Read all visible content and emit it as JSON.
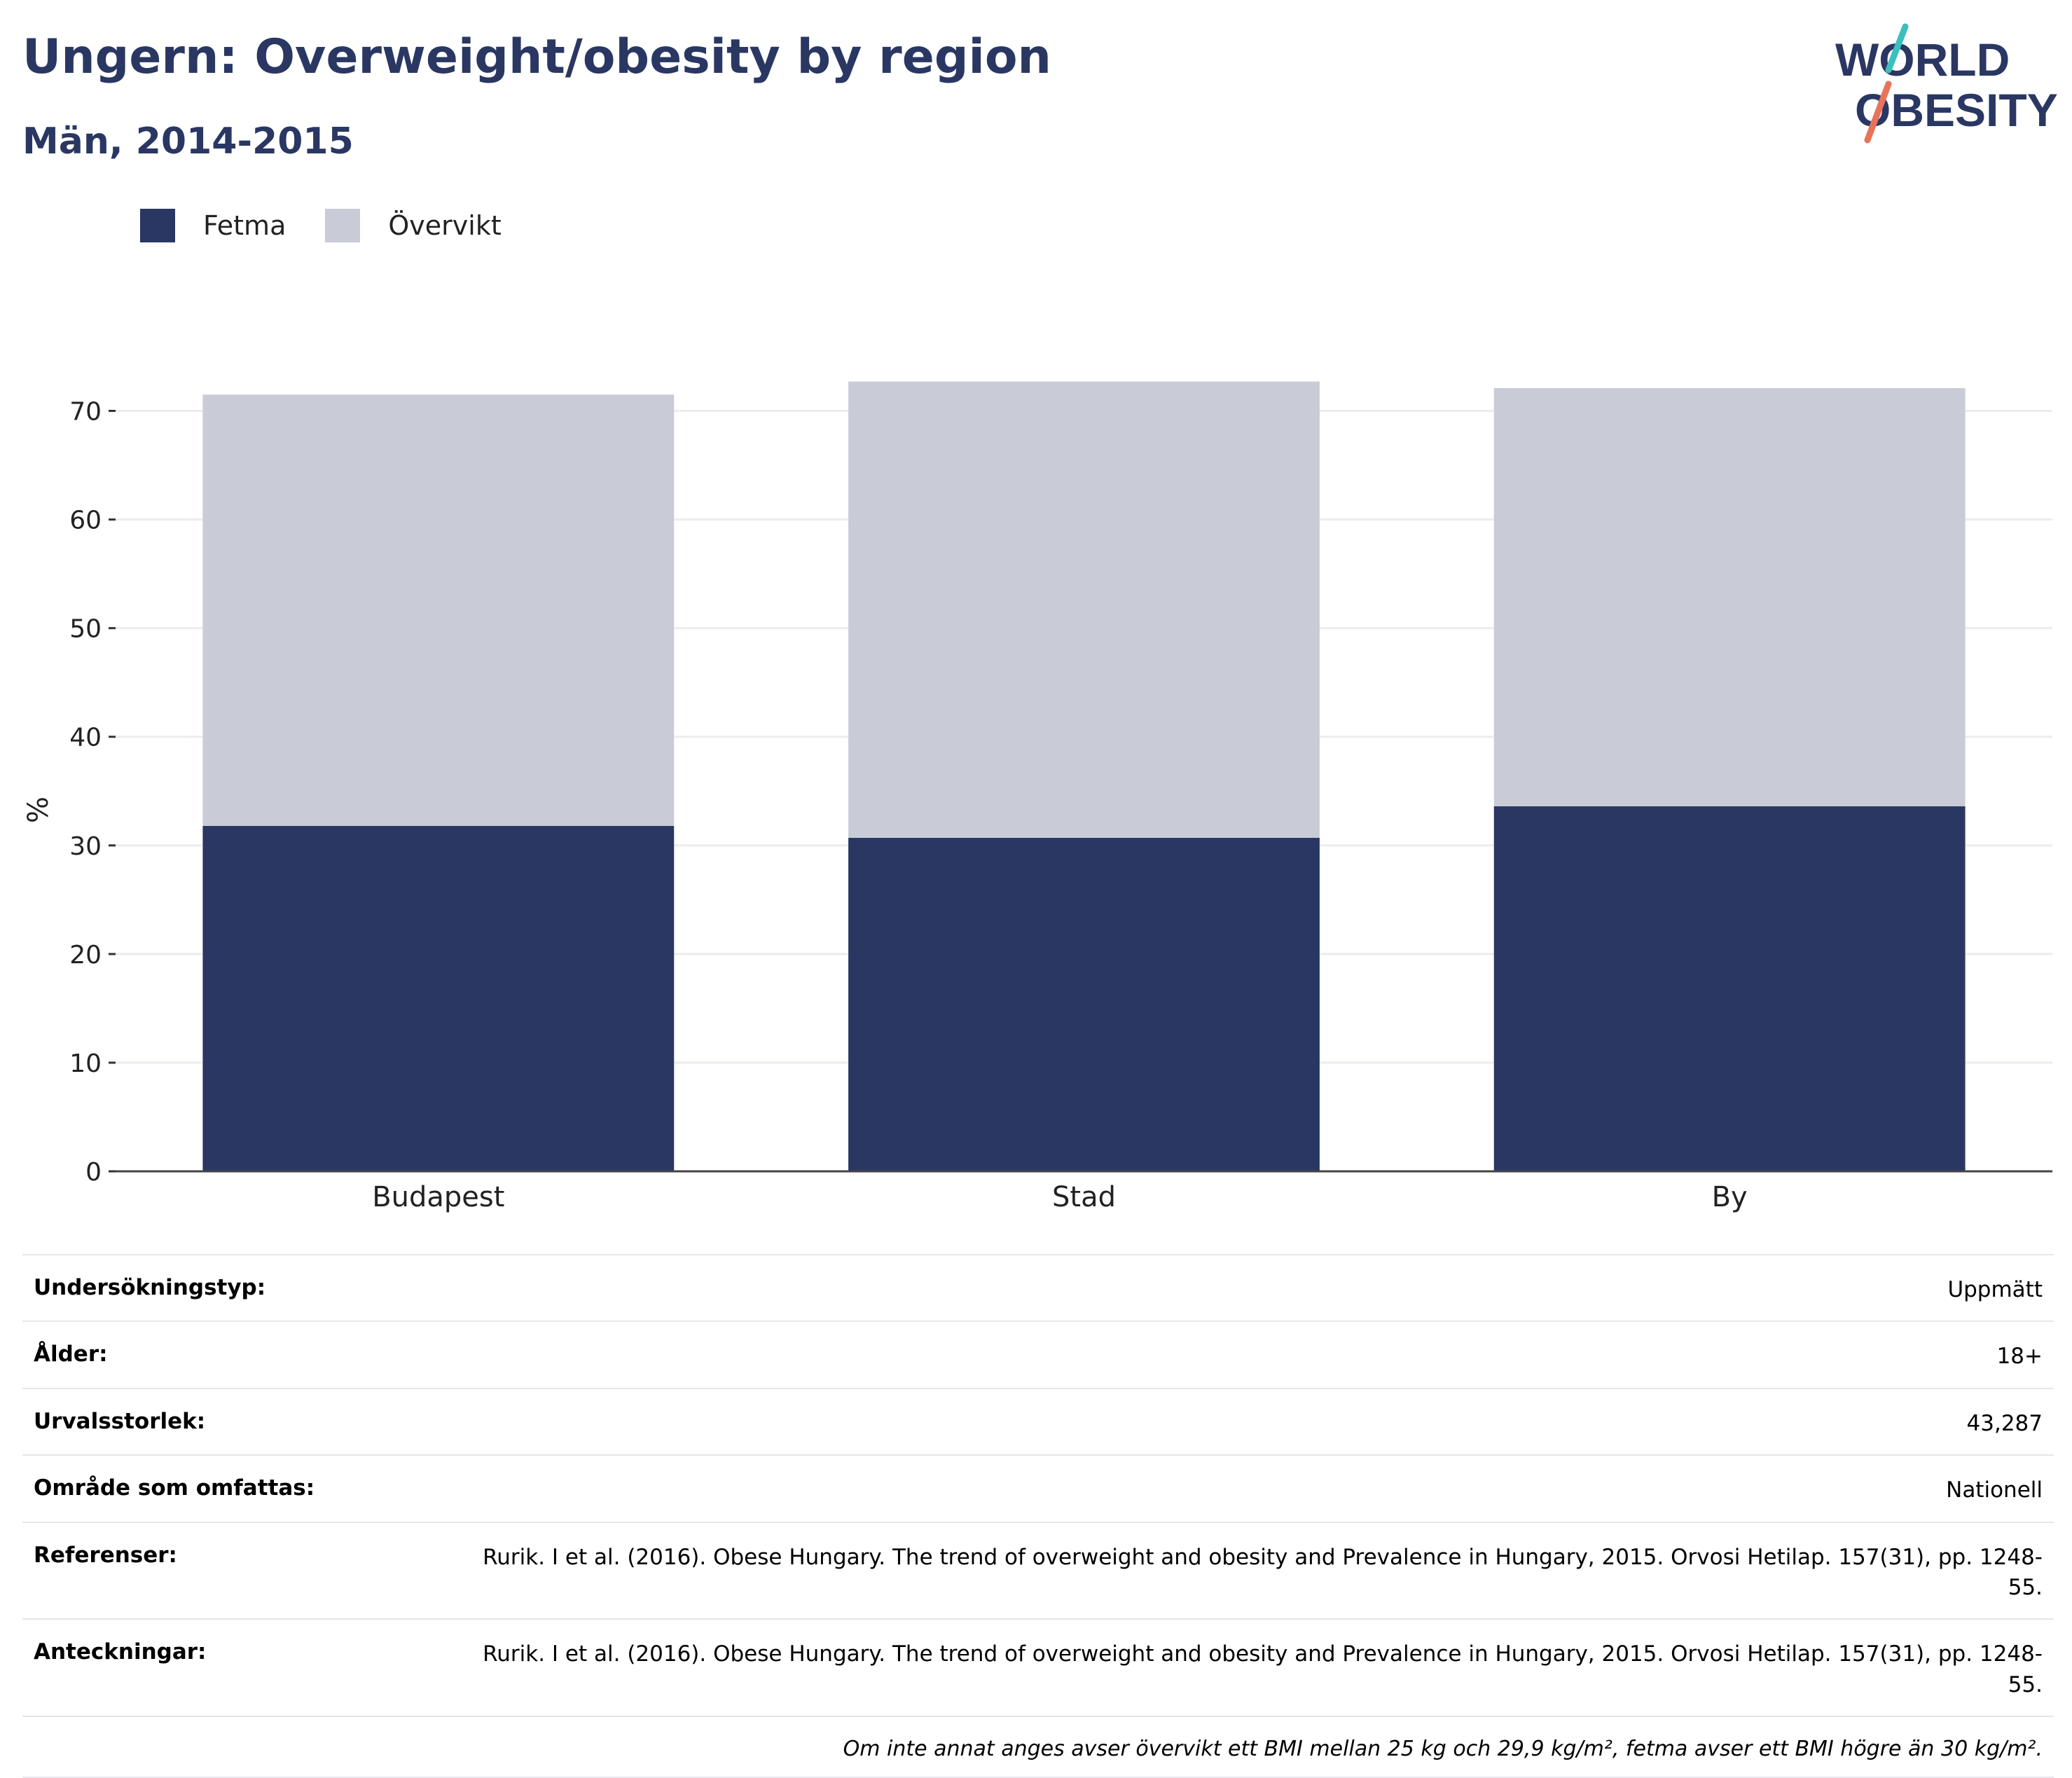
{
  "header": {
    "title": "Ungern: Overweight/obesity by region",
    "subtitle": "Män, 2014-2015"
  },
  "logo": {
    "line1": "WORLD",
    "line2": "OBESITY"
  },
  "colors": {
    "fetma": "#2a3763",
    "overvikt": "#c9cbd7",
    "title": "#2a3763",
    "logo_teal": "#3bbfbf",
    "logo_coral": "#e8735a"
  },
  "chart_data": {
    "type": "bar",
    "stacked": true,
    "categories": [
      "Budapest",
      "Stad",
      "By"
    ],
    "series": [
      {
        "name": "Fetma",
        "values": [
          31.8,
          30.7,
          33.6
        ]
      },
      {
        "name": "Övervikt",
        "values": [
          39.7,
          42.0,
          38.5
        ]
      }
    ],
    "ylabel": "%",
    "ylim": [
      0,
      73
    ],
    "yticks": [
      0,
      10,
      20,
      30,
      40,
      50,
      60,
      70
    ],
    "grid": true,
    "legend_position": "top-left"
  },
  "meta": {
    "rows": [
      {
        "label": "Undersökningstyp:",
        "value": "Uppmätt"
      },
      {
        "label": "Ålder:",
        "value": "18+"
      },
      {
        "label": "Urvalsstorlek:",
        "value": "43,287"
      },
      {
        "label": "Område som omfattas:",
        "value": "Nationell"
      },
      {
        "label": "Referenser:",
        "value": "Rurik. I et al. (2016). Obese Hungary. The trend of overweight and obesity and Prevalence in Hungary, 2015. Orvosi Hetilap. 157(31), pp. 1248-55."
      },
      {
        "label": "Anteckningar:",
        "value": "Rurik. I et al. (2016). Obese Hungary. The trend of overweight and obesity and Prevalence in Hungary, 2015. Orvosi Hetilap. 157(31), pp. 1248-55."
      }
    ],
    "note": "Om inte annat anges avser övervikt ett BMI mellan 25 kg och 29,9 kg/m², fetma avser ett BMI högre än 30 kg/m²."
  }
}
